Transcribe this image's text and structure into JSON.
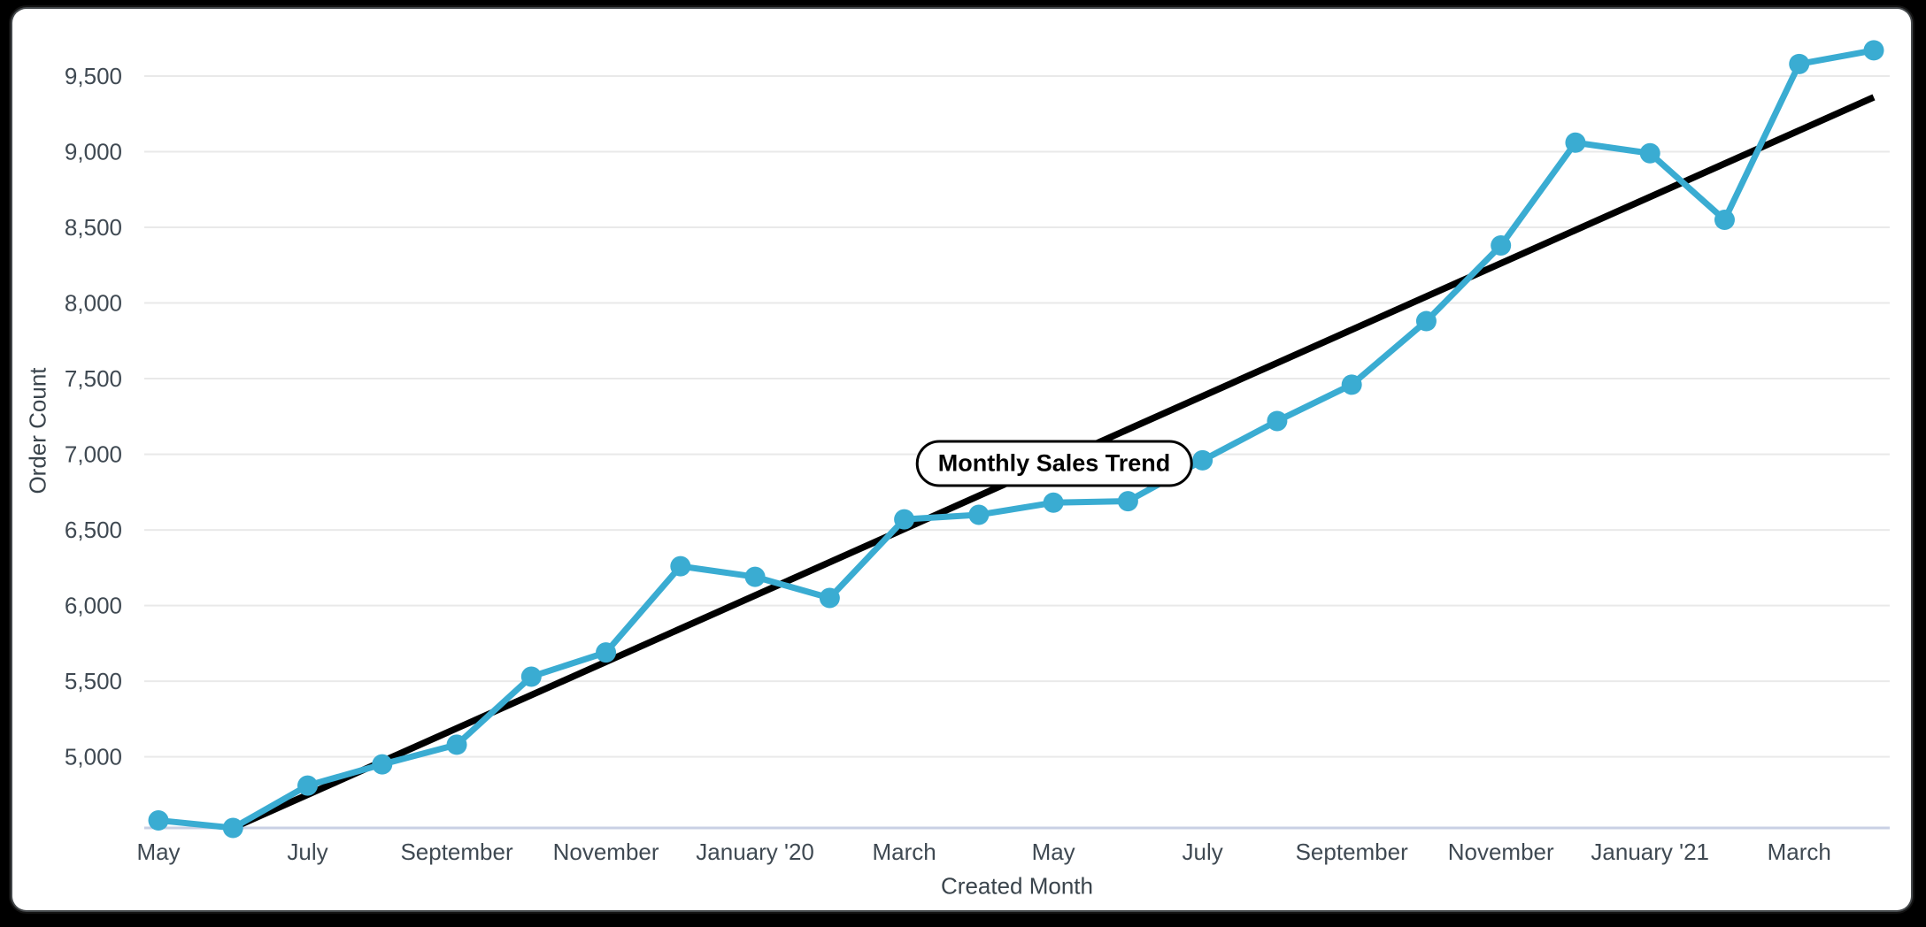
{
  "chart_data": {
    "type": "line",
    "title": "Monthly Sales Trend",
    "xlabel": "Created Month",
    "ylabel": "Order Count",
    "x_tick_labels": [
      "May",
      "July",
      "September",
      "November",
      "January '20",
      "March",
      "May",
      "July",
      "September",
      "November",
      "January '21",
      "March"
    ],
    "x_tick_indices": [
      0,
      2,
      4,
      6,
      8,
      10,
      12,
      14,
      16,
      18,
      20,
      22
    ],
    "values": [
      4580,
      4530,
      4810,
      4950,
      5080,
      5530,
      5690,
      6260,
      6190,
      6050,
      6570,
      6600,
      6680,
      6690,
      6960,
      7220,
      7460,
      7880,
      8380,
      9060,
      8990,
      8550,
      9580,
      9670
    ],
    "yticks": [
      5000,
      5500,
      6000,
      6500,
      7000,
      7500,
      8000,
      8500,
      9000,
      9500
    ],
    "ytick_labels": [
      "5,000",
      "5,500",
      "6,000",
      "6,500",
      "7,000",
      "7,500",
      "8,000",
      "8,500",
      "9,000",
      "9,500"
    ],
    "ylim": [
      4530,
      9770
    ],
    "grid": "horizontal-only",
    "legend": "none",
    "series_color": "#3AACD2",
    "trend_line": {
      "color": "#000000",
      "start_index": 1,
      "start_value": 4530,
      "end_index": 23,
      "end_value": 9360
    },
    "axis_text_color": "#3F4952",
    "gridline_color": "#E9E9E9",
    "baseline_color": "#C9D0E4"
  }
}
